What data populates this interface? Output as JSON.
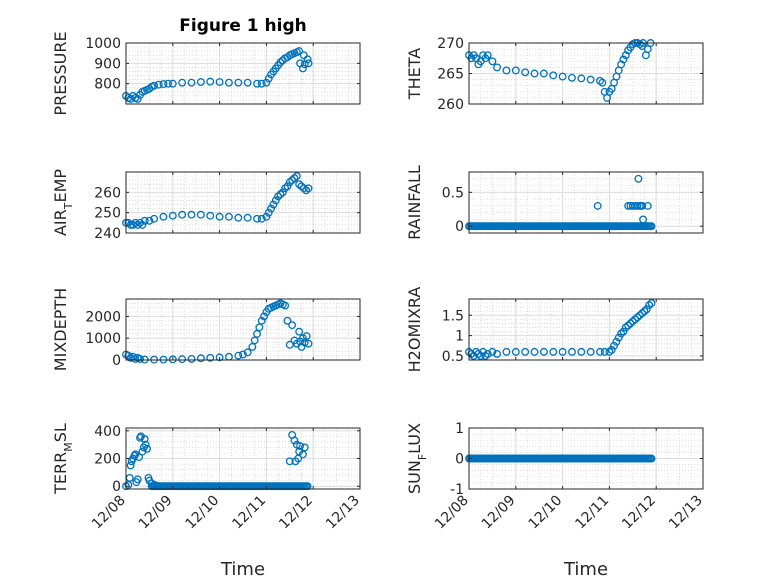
{
  "figure": {
    "title": "Figure 1 high",
    "xlabel": "Time",
    "marker_color": "#0072BD",
    "grid": true,
    "x_tick_labels": [
      "12/08",
      "12/09",
      "12/10",
      "12/11",
      "12/12",
      "12/13"
    ]
  },
  "chart_data": [
    {
      "type": "scatter",
      "ylabel": "PRESSURE",
      "ylabel_sub": "",
      "xlim": [
        8,
        13
      ],
      "ylim": [
        700,
        1000
      ],
      "yticks": [
        800,
        900,
        1000
      ],
      "x": [
        8.0,
        8.05,
        8.1,
        8.15,
        8.2,
        8.25,
        8.3,
        8.35,
        8.4,
        8.45,
        8.5,
        8.55,
        8.6,
        8.7,
        8.8,
        8.9,
        9.0,
        9.2,
        9.4,
        9.6,
        9.8,
        10.0,
        10.2,
        10.4,
        10.6,
        10.8,
        10.9,
        11.0,
        11.05,
        11.1,
        11.15,
        11.2,
        11.25,
        11.3,
        11.35,
        11.4,
        11.45,
        11.5,
        11.55,
        11.6,
        11.65,
        11.7,
        11.72,
        11.78,
        11.8,
        11.82,
        11.88,
        11.9
      ],
      "y": [
        740,
        730,
        725,
        740,
        730,
        725,
        745,
        760,
        765,
        770,
        775,
        785,
        790,
        795,
        798,
        800,
        800,
        805,
        805,
        808,
        810,
        808,
        805,
        805,
        805,
        800,
        800,
        805,
        825,
        845,
        860,
        875,
        890,
        905,
        915,
        925,
        930,
        940,
        945,
        950,
        955,
        960,
        900,
        875,
        940,
        895,
        920,
        900
      ]
    },
    {
      "type": "scatter",
      "ylabel": "THETA",
      "ylabel_sub": "",
      "xlim": [
        8,
        13
      ],
      "ylim": [
        260,
        270
      ],
      "yticks": [
        260,
        265,
        270
      ],
      "x": [
        8.0,
        8.05,
        8.1,
        8.15,
        8.2,
        8.25,
        8.3,
        8.35,
        8.4,
        8.5,
        8.6,
        8.8,
        9.0,
        9.2,
        9.4,
        9.6,
        9.8,
        10.0,
        10.2,
        10.4,
        10.6,
        10.8,
        10.85,
        10.9,
        10.95,
        11.0,
        11.05,
        11.1,
        11.15,
        11.2,
        11.25,
        11.3,
        11.35,
        11.4,
        11.45,
        11.5,
        11.55,
        11.6,
        11.65,
        11.7,
        11.72,
        11.78,
        11.82,
        11.88
      ],
      "y": [
        268,
        267.5,
        268,
        267.5,
        266.5,
        267,
        268,
        267.5,
        268,
        267,
        266,
        265.5,
        265.5,
        265.2,
        265,
        265,
        264.7,
        264.5,
        264.3,
        264.2,
        264,
        263.8,
        263.5,
        262,
        261,
        262,
        262.5,
        263.5,
        264.5,
        265.5,
        266.5,
        267.3,
        268,
        268.8,
        269.3,
        269.8,
        270,
        270,
        269.8,
        269.5,
        270,
        268,
        269,
        270
      ]
    },
    {
      "type": "scatter",
      "ylabel": "AIR",
      "ylabel_sub": "T",
      "ylabel_suffix": "EMP",
      "xlim": [
        8,
        13
      ],
      "ylim": [
        240,
        270
      ],
      "yticks": [
        240,
        250,
        260
      ],
      "x": [
        8.0,
        8.05,
        8.1,
        8.15,
        8.2,
        8.25,
        8.3,
        8.35,
        8.4,
        8.5,
        8.6,
        8.8,
        9.0,
        9.2,
        9.4,
        9.6,
        9.8,
        10.0,
        10.2,
        10.4,
        10.6,
        10.8,
        10.9,
        11.0,
        11.05,
        11.1,
        11.15,
        11.2,
        11.25,
        11.3,
        11.35,
        11.4,
        11.45,
        11.5,
        11.55,
        11.6,
        11.65,
        11.7,
        11.75,
        11.8,
        11.85,
        11.9
      ],
      "y": [
        245,
        245,
        244,
        244,
        245,
        244,
        245,
        244,
        246,
        246,
        247,
        248,
        248.5,
        249,
        249,
        249,
        248.5,
        248,
        248,
        247.5,
        247.5,
        247,
        247,
        248,
        250,
        252,
        254,
        256,
        258,
        259,
        260,
        262,
        263,
        265,
        266,
        267,
        268,
        264,
        263,
        262,
        261,
        262
      ]
    },
    {
      "type": "scatter",
      "ylabel": "RAINFALL",
      "ylabel_sub": "",
      "xlim": [
        8,
        13
      ],
      "ylim": [
        -0.1,
        0.8
      ],
      "yticks": [
        0,
        0.5
      ],
      "x": [
        10.75,
        11.4,
        11.45,
        11.5,
        11.55,
        11.6,
        11.62,
        11.65,
        11.68,
        11.7,
        11.72,
        11.78,
        11.82
      ],
      "y": [
        0.3,
        0.3,
        0.3,
        0.3,
        0.3,
        0.3,
        0.7,
        0.3,
        0.3,
        0.3,
        0.1,
        0.0,
        0.3
      ],
      "baseline": {
        "x_from": 8.0,
        "x_to": 11.9,
        "value": 0
      }
    },
    {
      "type": "scatter",
      "ylabel": "MIXDEPTH",
      "ylabel_sub": "",
      "xlim": [
        8,
        13
      ],
      "ylim": [
        0,
        2800
      ],
      "yticks": [
        0,
        1000,
        2000
      ],
      "x": [
        8.0,
        8.05,
        8.1,
        8.15,
        8.2,
        8.25,
        8.3,
        8.4,
        8.6,
        8.8,
        9.0,
        9.2,
        9.4,
        9.6,
        9.8,
        10.0,
        10.2,
        10.4,
        10.5,
        10.6,
        10.7,
        10.75,
        10.8,
        10.85,
        10.9,
        10.95,
        11.0,
        11.05,
        11.1,
        11.15,
        11.2,
        11.25,
        11.3,
        11.35,
        11.4,
        11.45,
        11.5,
        11.55,
        11.6,
        11.65,
        11.7,
        11.72,
        11.75,
        11.78,
        11.82,
        11.86,
        11.9
      ],
      "y": [
        250,
        200,
        100,
        150,
        50,
        100,
        50,
        20,
        20,
        20,
        30,
        40,
        50,
        80,
        100,
        120,
        150,
        200,
        250,
        350,
        600,
        900,
        1200,
        1500,
        1800,
        2000,
        2200,
        2350,
        2400,
        2450,
        2500,
        2550,
        2600,
        2550,
        2500,
        1800,
        700,
        1600,
        900,
        750,
        1300,
        850,
        600,
        1000,
        800,
        1100,
        750
      ]
    },
    {
      "type": "scatter",
      "ylabel": "H2OMIXRA",
      "ylabel_sub": "",
      "xlim": [
        8,
        13
      ],
      "ylim": [
        0.4,
        1.9
      ],
      "yticks": [
        0.5,
        1,
        1.5
      ],
      "x": [
        8.0,
        8.05,
        8.1,
        8.15,
        8.2,
        8.25,
        8.3,
        8.35,
        8.4,
        8.5,
        8.6,
        8.8,
        9.0,
        9.2,
        9.4,
        9.6,
        9.8,
        10.0,
        10.2,
        10.4,
        10.6,
        10.8,
        10.9,
        11.0,
        11.05,
        11.1,
        11.15,
        11.2,
        11.25,
        11.3,
        11.35,
        11.4,
        11.45,
        11.5,
        11.55,
        11.6,
        11.65,
        11.7,
        11.75,
        11.8,
        11.85,
        11.9
      ],
      "y": [
        0.6,
        0.55,
        0.5,
        0.6,
        0.55,
        0.5,
        0.6,
        0.5,
        0.55,
        0.6,
        0.55,
        0.6,
        0.6,
        0.6,
        0.6,
        0.6,
        0.6,
        0.6,
        0.6,
        0.6,
        0.6,
        0.6,
        0.6,
        0.6,
        0.65,
        0.75,
        0.85,
        0.95,
        1.05,
        1.1,
        1.2,
        1.25,
        1.3,
        1.35,
        1.4,
        1.45,
        1.5,
        1.55,
        1.6,
        1.65,
        1.75,
        1.8
      ]
    },
    {
      "type": "scatter",
      "ylabel": "TERR",
      "ylabel_sub": "M",
      "ylabel_suffix": "SL",
      "xlim": [
        8,
        13
      ],
      "ylim": [
        -20,
        420
      ],
      "yticks": [
        0,
        200,
        400
      ],
      "x": [
        8.0,
        8.05,
        8.08,
        8.1,
        8.12,
        8.15,
        8.18,
        8.2,
        8.22,
        8.25,
        8.28,
        8.3,
        8.32,
        8.35,
        8.38,
        8.4,
        8.42,
        8.45,
        8.48,
        8.5,
        8.55,
        8.6,
        8.65,
        8.7,
        11.5,
        11.55,
        11.6,
        11.62,
        11.65,
        11.68,
        11.7,
        11.72,
        11.78,
        11.82
      ],
      "y": [
        0,
        10,
        60,
        150,
        180,
        200,
        220,
        230,
        30,
        50,
        210,
        350,
        360,
        250,
        280,
        340,
        300,
        270,
        60,
        40,
        20,
        10,
        5,
        0,
        180,
        370,
        330,
        180,
        300,
        200,
        250,
        290,
        230,
        280
      ],
      "baseline": {
        "x_from": 8.55,
        "x_to": 11.9,
        "value": 0
      }
    },
    {
      "type": "scatter",
      "ylabel": "SUN",
      "ylabel_sub": "F",
      "ylabel_suffix": "LUX",
      "xlim": [
        8,
        13
      ],
      "ylim": [
        -1,
        1
      ],
      "yticks": [
        -1,
        0,
        1
      ],
      "x": [],
      "y": [],
      "baseline": {
        "x_from": 8.0,
        "x_to": 11.9,
        "value": 0
      }
    }
  ]
}
